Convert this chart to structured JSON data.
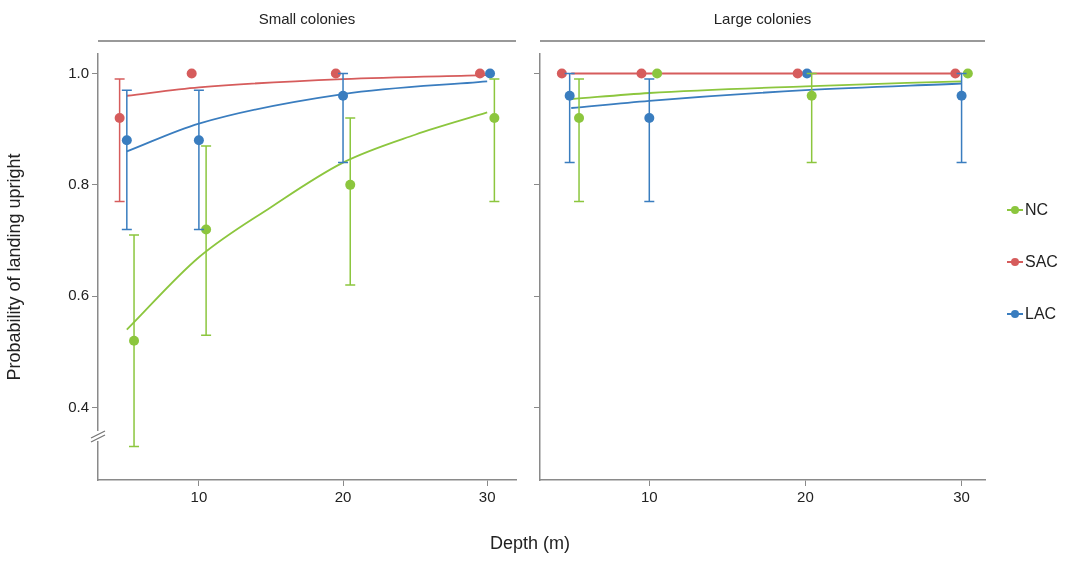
{
  "chart_data": [
    {
      "type": "scatter",
      "title": "Small colonies",
      "xlabel": "Depth (m)",
      "ylabel": "Probability of landing upright",
      "xlim": [
        3,
        32
      ],
      "xticks": [
        10,
        20,
        30
      ],
      "ylim": [
        0.27,
        1.035
      ],
      "yticks": [
        0.4,
        0.6,
        0.8,
        {
          "value": 1.0,
          "label": "1.0"
        }
      ],
      "grid": false,
      "marker": "circle",
      "series": [
        {
          "color": "#8cc63e",
          "x": [
            5.5,
            10.5,
            20.5,
            30.5
          ],
          "values": [
            0.52,
            0.72,
            0.8,
            0.92
          ],
          "errors": [
            [
              0.33,
              0.71
            ],
            [
              0.53,
              0.87
            ],
            [
              0.62,
              0.92
            ],
            [
              0.77,
              0.99
            ]
          ]
        },
        {
          "color": "#d65c5c",
          "x": [
            4.5,
            9.5,
            19.5,
            29.5
          ],
          "values": [
            0.92,
            1.0,
            1.0,
            1.0
          ],
          "errors": [
            [
              0.77,
              0.99
            ],
            null,
            null,
            null
          ]
        },
        {
          "color": "#3a7dbf",
          "x": [
            5,
            10,
            20,
            30.2
          ],
          "values": [
            0.88,
            0.88,
            0.96,
            1.0
          ],
          "errors": [
            [
              0.72,
              0.97
            ],
            [
              0.72,
              0.97
            ],
            [
              0.84,
              1.0
            ],
            null
          ]
        },
        {
          "type": "line",
          "marker": "none",
          "color": "#8cc63e",
          "x": [
            5,
            10,
            15,
            20,
            25,
            30
          ],
          "values": [
            0.54,
            0.67,
            0.76,
            0.84,
            0.89,
            0.93
          ]
        },
        {
          "type": "line",
          "marker": "none",
          "color": "#d65c5c",
          "x": [
            5,
            10,
            20,
            30
          ],
          "values": [
            0.96,
            0.975,
            0.99,
            0.997
          ]
        },
        {
          "type": "line",
          "marker": "none",
          "color": "#3a7dbf",
          "x": [
            5,
            10,
            20,
            30
          ],
          "values": [
            0.86,
            0.91,
            0.963,
            0.986
          ]
        }
      ]
    },
    {
      "type": "scatter",
      "title": "Large colonies",
      "xlim": [
        3,
        31.5
      ],
      "xticks": [
        10,
        20,
        30
      ],
      "ylim": [
        0.27,
        1.035
      ],
      "yticks": [
        0.4,
        0.6,
        0.8,
        1.0
      ],
      "tick_labels": "x",
      "grid": false,
      "marker": "circle",
      "legend": "right",
      "series": [
        {
          "name": "NC",
          "color": "#8cc63e",
          "x": [
            5.5,
            10.5,
            20.4,
            30.4
          ],
          "values": [
            0.92,
            1.0,
            0.96,
            1.0
          ],
          "errors": [
            [
              0.77,
              0.99
            ],
            null,
            [
              0.84,
              1.0
            ],
            null
          ]
        },
        {
          "name": "SAC",
          "color": "#d65c5c",
          "x": [
            4.4,
            9.5,
            19.5,
            29.6
          ],
          "values": [
            1.0,
            1.0,
            1.0,
            1.0
          ]
        },
        {
          "name": "LAC",
          "color": "#3a7dbf",
          "x": [
            4.9,
            10,
            20.1,
            30
          ],
          "values": [
            0.96,
            0.92,
            1.0,
            0.96
          ],
          "errors": [
            [
              0.84,
              1.0
            ],
            [
              0.77,
              0.99
            ],
            null,
            [
              0.84,
              1.0
            ]
          ]
        },
        {
          "type": "line",
          "marker": "none",
          "color": "#8cc63e",
          "x": [
            5,
            10,
            20,
            30
          ],
          "values": [
            0.954,
            0.965,
            0.977,
            0.986
          ]
        },
        {
          "type": "line",
          "marker": "none",
          "color": "#d65c5c",
          "x": [
            5,
            30
          ],
          "values": [
            1.0,
            1.0
          ]
        },
        {
          "type": "line",
          "marker": "none",
          "color": "#3a7dbf",
          "x": [
            5,
            10,
            20,
            30
          ],
          "values": [
            0.938,
            0.951,
            0.97,
            0.982
          ]
        }
      ]
    }
  ]
}
